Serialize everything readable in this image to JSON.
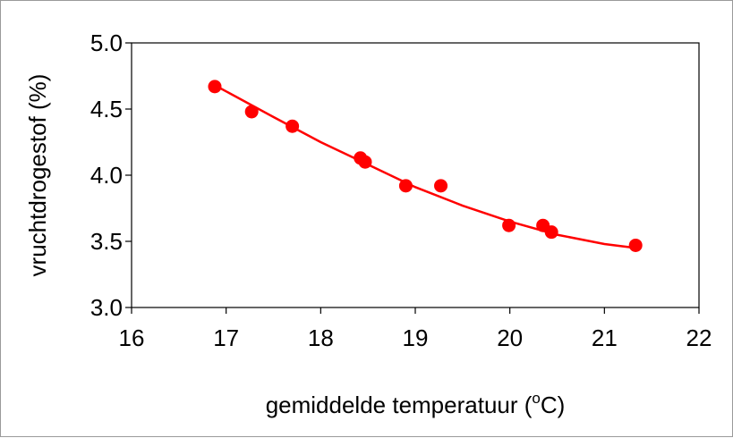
{
  "chart_data": {
    "type": "scatter",
    "xlabel": "gemiddelde temperatuur (",
    "xlabel_sup": "o",
    "xlabel_suffix": "C)",
    "ylabel": "vruchtdrogestof (%)",
    "xlim": [
      16,
      22
    ],
    "ylim": [
      3.0,
      5.0
    ],
    "x_ticks": [
      "16",
      "17",
      "18",
      "19",
      "20",
      "21",
      "22"
    ],
    "y_ticks": [
      "3.0",
      "3.5",
      "4.0",
      "4.5",
      "5.0"
    ],
    "grid": false,
    "legend": "none",
    "series": [
      {
        "color": "#ff0000",
        "marker": "circle",
        "points": [
          {
            "x": 16.88,
            "y": 4.67
          },
          {
            "x": 17.27,
            "y": 4.48
          },
          {
            "x": 17.7,
            "y": 4.37
          },
          {
            "x": 18.42,
            "y": 4.13
          },
          {
            "x": 18.47,
            "y": 4.1
          },
          {
            "x": 18.9,
            "y": 3.92
          },
          {
            "x": 19.27,
            "y": 3.92
          },
          {
            "x": 19.99,
            "y": 3.62
          },
          {
            "x": 20.35,
            "y": 3.62
          },
          {
            "x": 20.44,
            "y": 3.57
          },
          {
            "x": 21.33,
            "y": 3.47
          }
        ]
      }
    ],
    "trendline": {
      "type": "polynomial",
      "color": "#ff0000",
      "points": [
        {
          "x": 16.88,
          "y": 4.68
        },
        {
          "x": 17.5,
          "y": 4.44
        },
        {
          "x": 18.0,
          "y": 4.25
        },
        {
          "x": 18.5,
          "y": 4.08
        },
        {
          "x": 19.0,
          "y": 3.91
        },
        {
          "x": 19.5,
          "y": 3.77
        },
        {
          "x": 20.0,
          "y": 3.65
        },
        {
          "x": 20.5,
          "y": 3.55
        },
        {
          "x": 21.0,
          "y": 3.48
        },
        {
          "x": 21.33,
          "y": 3.45
        }
      ]
    }
  }
}
